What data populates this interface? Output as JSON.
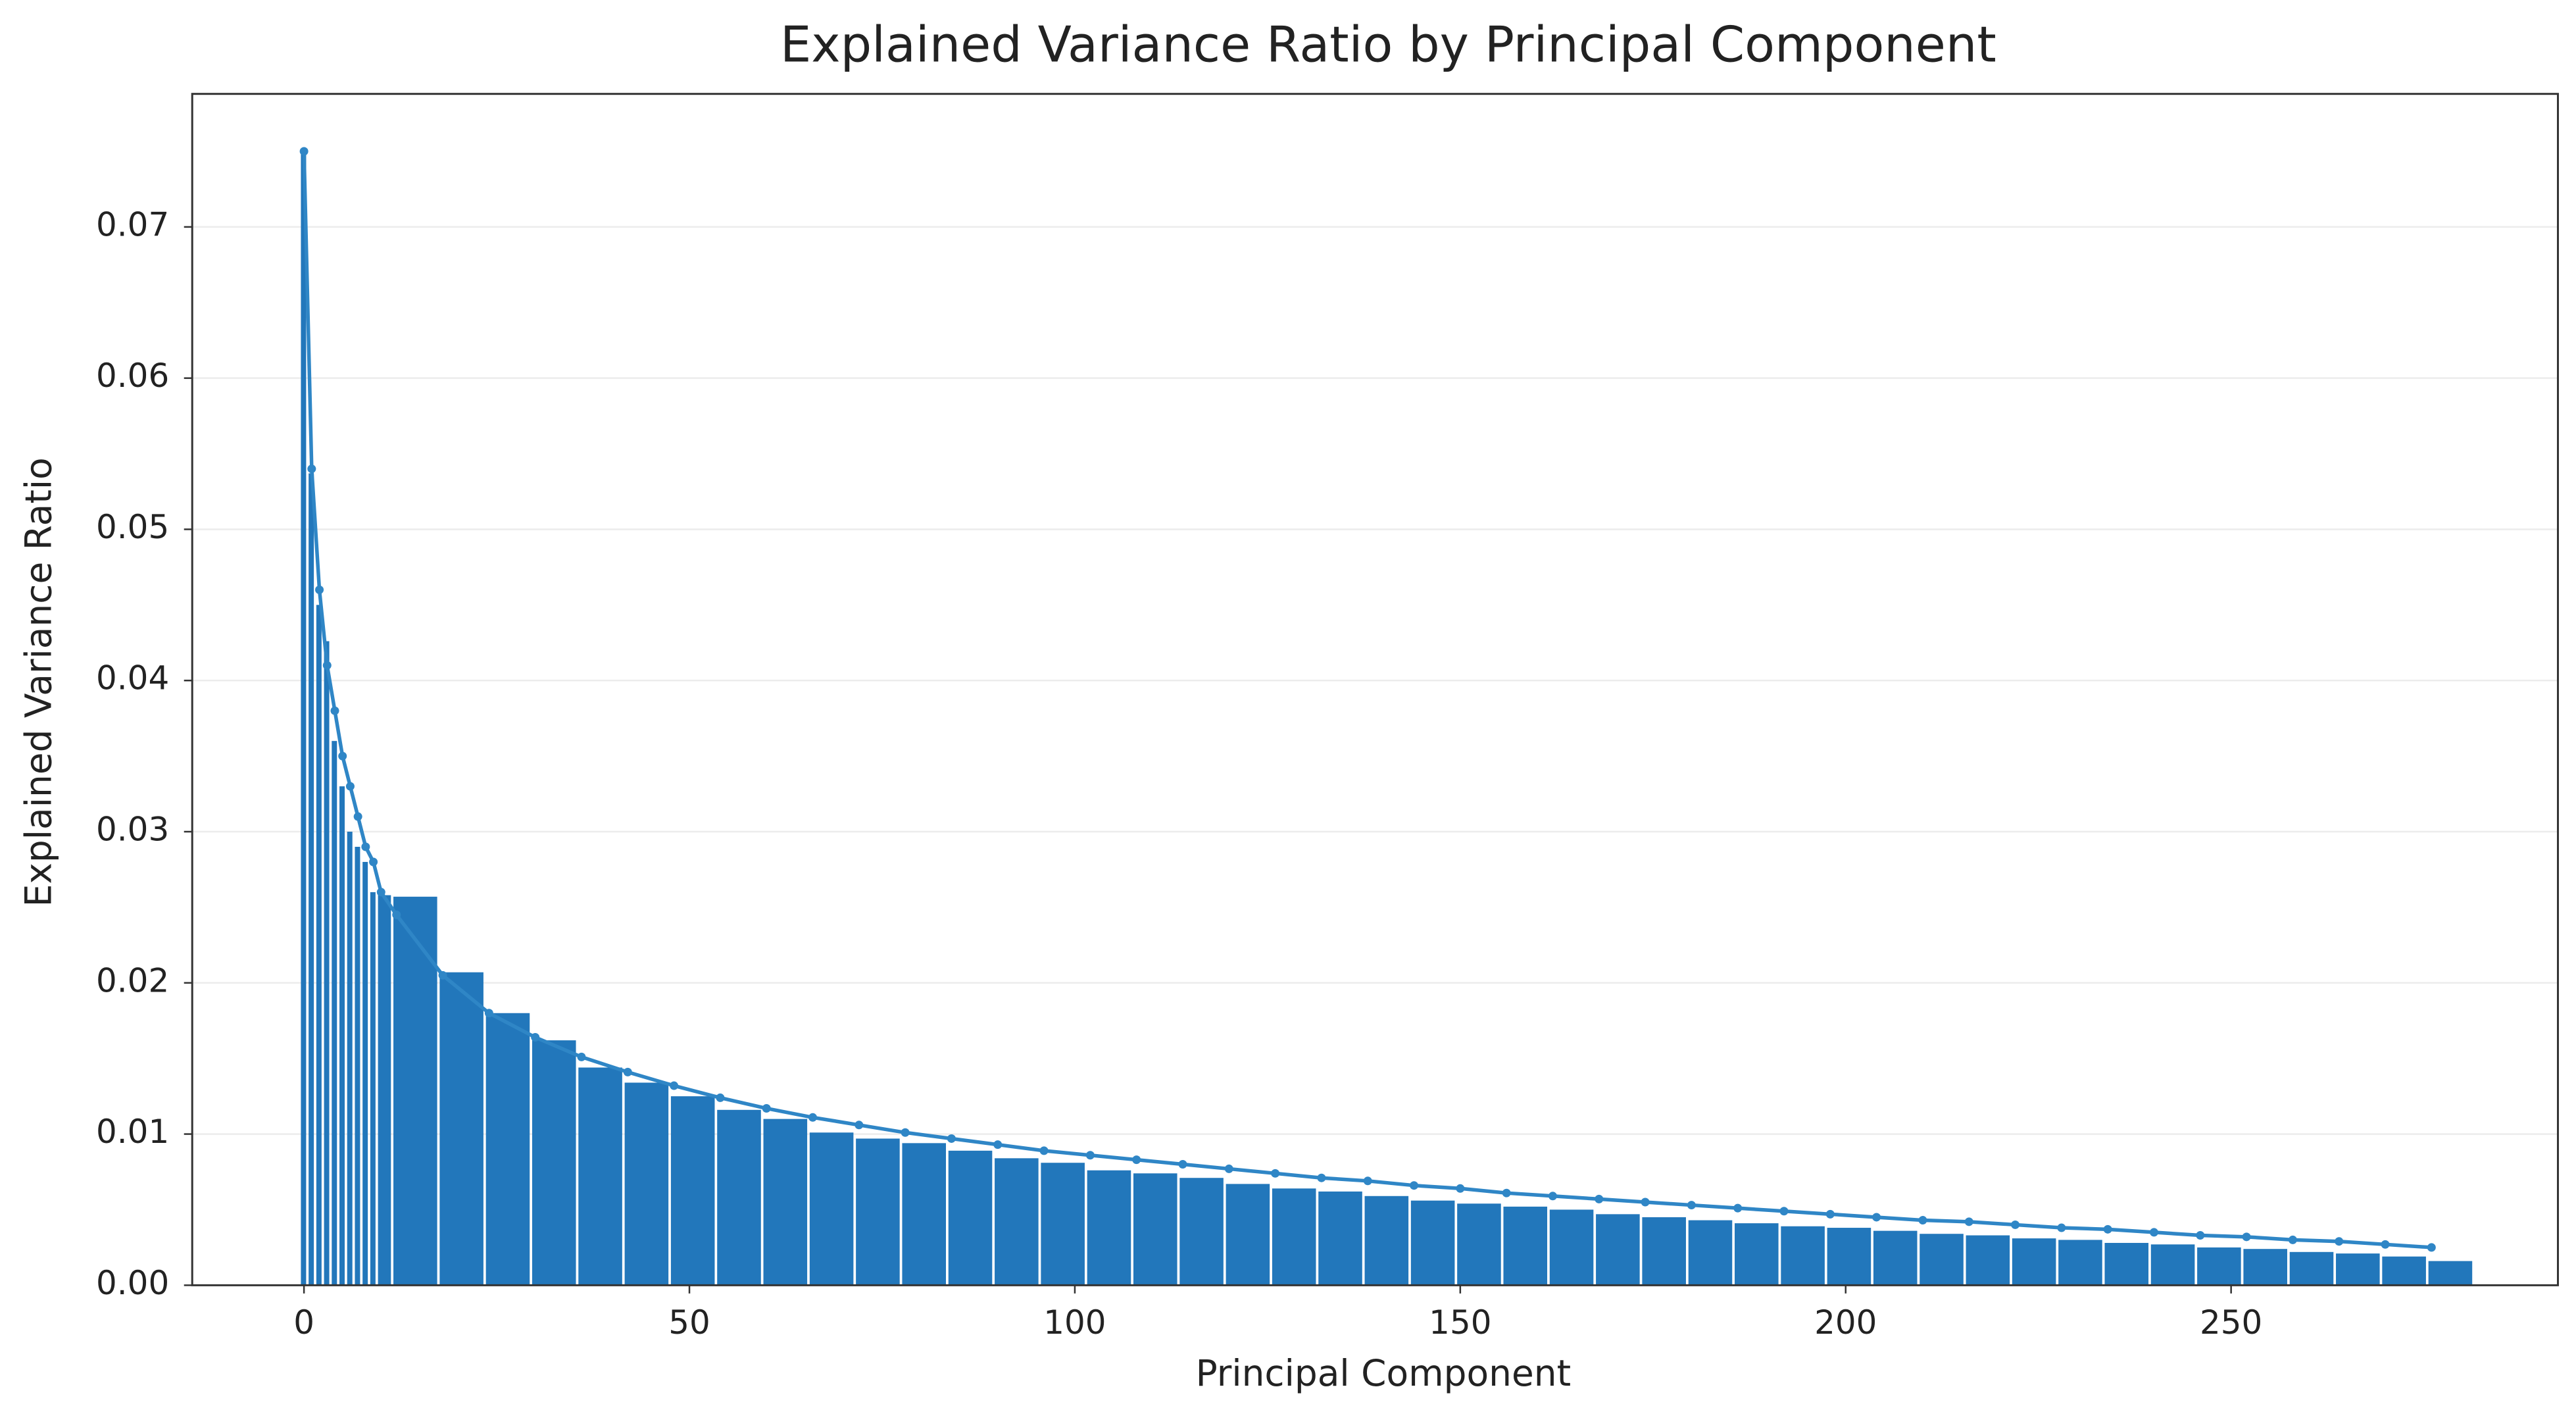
{
  "chart_data": {
    "type": "bar",
    "title": "Explained Variance Ratio by Principal Component",
    "x_label": "Principal Component",
    "y_label": "Explained Variance Ratio",
    "x": [
      0,
      1,
      2,
      3,
      4,
      5,
      6,
      7,
      8,
      9,
      10,
      12,
      18,
      24,
      30,
      36,
      42,
      48,
      54,
      60,
      66,
      72,
      78,
      84,
      90,
      96,
      102,
      108,
      114,
      120,
      126,
      132,
      138,
      144,
      150,
      156,
      162,
      168,
      174,
      180,
      186,
      192,
      198,
      204,
      210,
      216,
      222,
      228,
      234,
      240,
      246,
      252,
      258,
      264,
      270,
      276
    ],
    "series": [
      {
        "type": "bar",
        "color": "#2277bb",
        "values": [
          0.075,
          0.0537,
          0.045,
          0.0426,
          0.036,
          0.033,
          0.03,
          0.029,
          0.028,
          0.026,
          0.0258,
          0.0257,
          0.0207,
          0.018,
          0.0162,
          0.0144,
          0.0134,
          0.0125,
          0.0116,
          0.011,
          0.0101,
          0.0097,
          0.0094,
          0.0089,
          0.0084,
          0.0081,
          0.0076,
          0.0074,
          0.0071,
          0.0067,
          0.0064,
          0.0062,
          0.0059,
          0.0056,
          0.0054,
          0.0052,
          0.005,
          0.0047,
          0.0045,
          0.0043,
          0.0041,
          0.0039,
          0.0038,
          0.0036,
          0.0034,
          0.0033,
          0.0031,
          0.003,
          0.0028,
          0.0027,
          0.0025,
          0.0024,
          0.0022,
          0.0021,
          0.0019,
          0.0016
        ]
      },
      {
        "type": "line",
        "color": "#2f86c6",
        "values": [
          0.075,
          0.054,
          0.046,
          0.041,
          0.038,
          0.035,
          0.033,
          0.031,
          0.029,
          0.028,
          0.026,
          0.0245,
          0.0205,
          0.018,
          0.0164,
          0.0151,
          0.0141,
          0.0132,
          0.0124,
          0.0117,
          0.0111,
          0.0106,
          0.0101,
          0.0097,
          0.0093,
          0.0089,
          0.0086,
          0.0083,
          0.008,
          0.0077,
          0.0074,
          0.0071,
          0.0069,
          0.0066,
          0.0064,
          0.0061,
          0.0059,
          0.0057,
          0.0055,
          0.0053,
          0.0051,
          0.0049,
          0.0047,
          0.0045,
          0.0043,
          0.0042,
          0.004,
          0.0038,
          0.0037,
          0.0035,
          0.0033,
          0.0032,
          0.003,
          0.0029,
          0.0027,
          0.0025
        ]
      }
    ],
    "xlim": [
      -14.5,
      292.4
    ],
    "xticks": [
      0,
      50,
      100,
      150,
      200,
      250
    ],
    "ylim": [
      0,
      0.0788
    ],
    "yticks": [
      {
        "value": 0,
        "label": "0.00"
      },
      {
        "value": 0.01,
        "label": "0.01"
      },
      {
        "value": 0.02,
        "label": "0.02"
      },
      {
        "value": 0.03,
        "label": "0.03"
      },
      {
        "value": 0.04,
        "label": "0.04"
      },
      {
        "value": 0.05,
        "label": "0.05"
      },
      {
        "value": 0.06,
        "label": "0.06"
      },
      {
        "value": 0.07,
        "label": "0.07"
      }
    ],
    "grid": true
  }
}
